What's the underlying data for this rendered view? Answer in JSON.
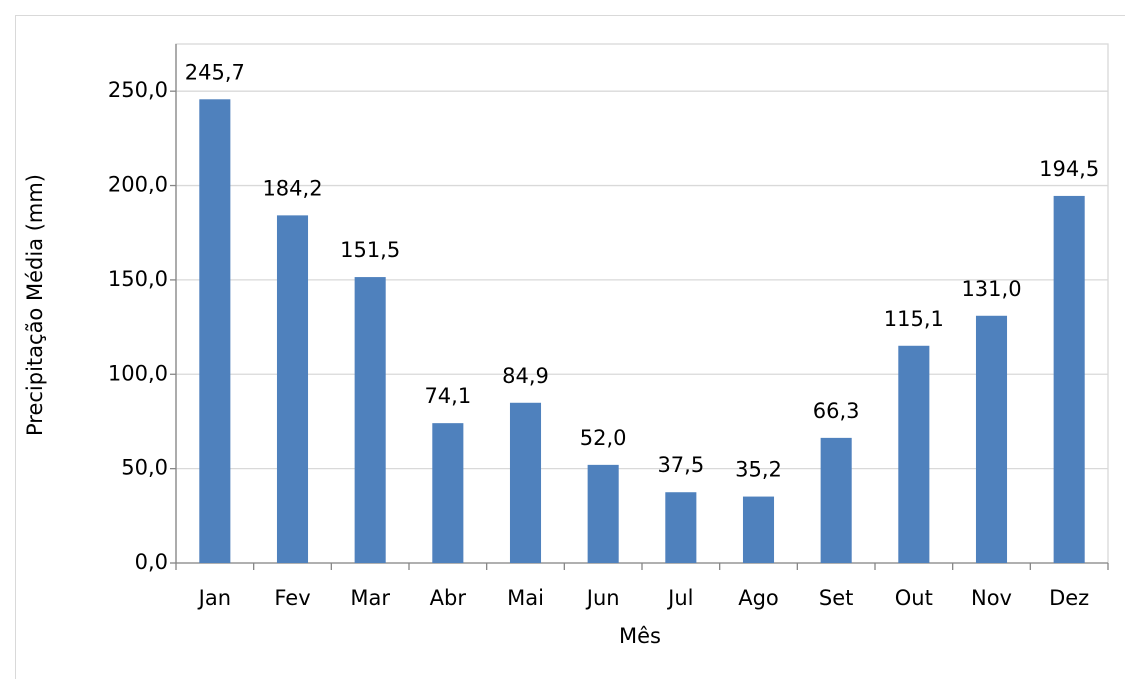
{
  "chart_data": {
    "type": "bar",
    "categories": [
      "Jan",
      "Fev",
      "Mar",
      "Abr",
      "Mai",
      "Jun",
      "Jul",
      "Ago",
      "Set",
      "Out",
      "Nov",
      "Dez"
    ],
    "values": [
      245.7,
      184.2,
      151.5,
      74.1,
      84.9,
      52.0,
      37.5,
      35.2,
      66.3,
      115.1,
      131.0,
      194.5
    ],
    "value_labels": [
      "245,7",
      "184,2",
      "151,5",
      "74,1",
      "84,9",
      "52,0",
      "37,5",
      "35,2",
      "66,3",
      "115,1",
      "131,0",
      "194,5"
    ],
    "color": "#4f81bd",
    "x_label": "Mês",
    "y_label": "Precipitação Média (mm)",
    "ylim": [
      0,
      275
    ],
    "yticks": [
      {
        "value": 0,
        "label": "0,0"
      },
      {
        "value": 50,
        "label": "50,0"
      },
      {
        "value": 100,
        "label": "100,0"
      },
      {
        "value": 150,
        "label": "150,0"
      },
      {
        "value": 200,
        "label": "200,0"
      },
      {
        "value": 250,
        "label": "250,0"
      }
    ],
    "grid": true
  }
}
